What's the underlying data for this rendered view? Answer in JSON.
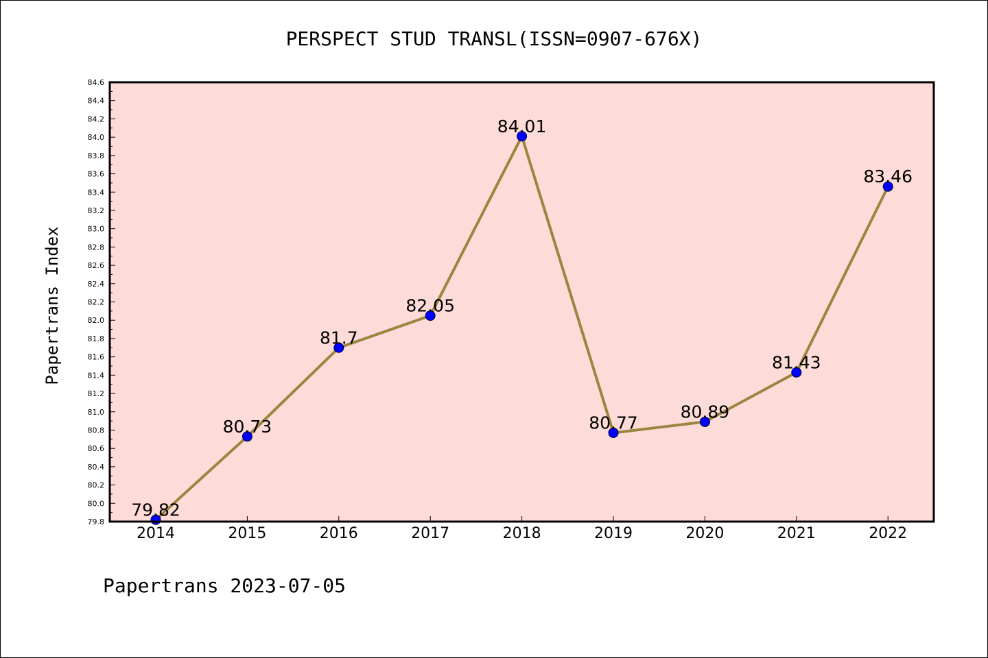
{
  "chart_data": {
    "type": "line",
    "title": "PERSPECT STUD TRANSL(ISSN=0907-676X)",
    "xlabel": "",
    "ylabel": "Papertrans Index",
    "footer": "Papertrans 2023-07-05",
    "categories": [
      "2014",
      "2015",
      "2016",
      "2017",
      "2018",
      "2019",
      "2020",
      "2021",
      "2022"
    ],
    "values": [
      79.82,
      80.73,
      81.7,
      82.05,
      84.01,
      80.77,
      80.89,
      81.43,
      83.46
    ],
    "value_labels": [
      "79.82",
      "80.73",
      "81.7",
      "82.05",
      "84.01",
      "80.77",
      "80.89",
      "81.43",
      "83.46"
    ],
    "ylim": [
      79.8,
      84.6
    ],
    "yticks": [
      "79.8",
      "80.0",
      "80.2",
      "80.4",
      "80.6",
      "80.8",
      "81.0",
      "81.2",
      "81.4",
      "81.6",
      "81.8",
      "82.0",
      "82.2",
      "82.4",
      "82.6",
      "82.8",
      "83.0",
      "83.2",
      "83.4",
      "83.6",
      "83.8",
      "84.0",
      "84.2",
      "84.4",
      "84.6"
    ],
    "grid": false,
    "colors": {
      "plot_background": "#fddbd8",
      "line": "#9b8540",
      "marker": "#0000ff",
      "frame": "#000000"
    }
  }
}
